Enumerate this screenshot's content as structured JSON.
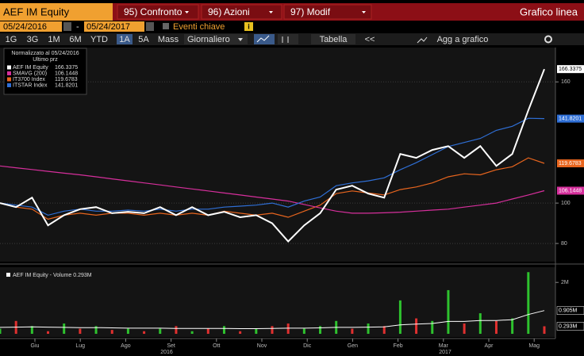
{
  "toolbar": {
    "ticker": "AEF IM Equity",
    "buttons": [
      "95) Confronto",
      "96) Azioni",
      "97) Modif"
    ],
    "view": "Grafico linea",
    "start_date": "05/24/2016",
    "separator": "-",
    "end_date": "05/24/2017",
    "events": "Eventi chiave",
    "info": "i",
    "periods": [
      "1G",
      "3G",
      "1M",
      "6M",
      "YTD",
      "1A",
      "5A",
      "Mass"
    ],
    "active_period": "1A",
    "frequency": "Giornaliero",
    "table": "Tabella",
    "back": "<<",
    "add": "Agg a grafico"
  },
  "chart_data": [
    {
      "type": "line",
      "legend_title": "Normalizzato al 05/24/2016",
      "legend_subtitle": "Ultimo prz",
      "x_labels": [
        "Giu",
        "Lug",
        "Ago",
        "Set",
        "Ott",
        "Nov",
        "Dic",
        "Gen",
        "Feb",
        "Mar",
        "Apr",
        "Mag"
      ],
      "years": [
        "2016",
        "2017"
      ],
      "ylim": [
        71,
        177
      ],
      "yticks": [
        80,
        100,
        160
      ],
      "grid": true,
      "series": [
        {
          "name": "AEF IM Equity",
          "color": "#ffffff",
          "values": [
            100,
            98,
            102.7,
            89,
            94,
            97,
            98,
            95,
            95.7,
            95,
            98,
            94,
            98,
            94,
            95.7,
            93,
            94,
            90,
            81,
            89,
            95,
            106.7,
            108.6,
            104.7,
            102.7,
            124.3,
            122.4,
            126.3,
            128.2,
            122.4,
            128.2,
            118.4,
            124.3,
            145.9,
            166.3375
          ]
        },
        {
          "name": "SMAVG (200)",
          "color": "#d62f9c",
          "values": [
            118.4,
            117.5,
            116.6,
            115.7,
            114.8,
            114,
            113,
            112,
            111,
            110,
            109,
            108,
            107,
            106,
            105,
            104,
            103,
            102,
            101,
            99.3,
            97.6,
            96,
            95,
            95,
            95.2,
            95.5,
            96,
            96.5,
            97,
            98,
            99,
            100,
            102,
            104,
            106.1448
          ]
        },
        {
          "name": "IT3700 Index",
          "color": "#e8651e",
          "values": [
            100,
            98,
            97,
            92,
            94,
            95,
            94,
            95,
            95,
            94,
            95,
            94,
            95,
            94,
            96,
            95,
            94,
            95,
            93,
            96,
            99,
            104.7,
            106,
            105,
            104,
            106.7,
            108,
            110,
            113,
            114.5,
            114,
            116.5,
            118,
            122.4,
            119.6783
          ]
        },
        {
          "name": "ITSTAR Index",
          "color": "#2f6fd6",
          "values": [
            100,
            99,
            98,
            94,
            96,
            97,
            96,
            96,
            96.5,
            96,
            97,
            96,
            97,
            97,
            98,
            98.5,
            99,
            100,
            98,
            101,
            103,
            108.6,
            110,
            111,
            112.5,
            116.5,
            120,
            124,
            128,
            130,
            132,
            136,
            138,
            142,
            141.8201
          ]
        }
      ]
    },
    {
      "type": "bar",
      "title": "AEF IM Equity - Volume 0.293M",
      "ylim": [
        0,
        2.5
      ],
      "yticks": [
        {
          "value": 2,
          "label": "2M"
        }
      ],
      "values": [
        0.2,
        0.5,
        0.3,
        0.1,
        0.4,
        0.2,
        0.3,
        0.15,
        0.2,
        0.1,
        0.2,
        0.3,
        0.1,
        0.2,
        0.3,
        0.1,
        0.2,
        0.3,
        0.4,
        0.2,
        0.3,
        0.5,
        0.2,
        0.4,
        0.3,
        1.3,
        0.6,
        0.5,
        1.7,
        0.4,
        0.8,
        0.5,
        0.6,
        2.4,
        0.293
      ],
      "colors": [
        "#2ec22e",
        "#e0302f",
        "#2ec22e",
        "#e0302f",
        "#2ec22e",
        "#e0302f",
        "#2ec22e",
        "#e0302f",
        "#2ec22e",
        "#e0302f",
        "#2ec22e",
        "#e0302f",
        "#2ec22e",
        "#e0302f",
        "#2ec22e",
        "#e0302f",
        "#2ec22e",
        "#e0302f",
        "#e0302f",
        "#2ec22e",
        "#2ec22e",
        "#2ec22e",
        "#e0302f",
        "#2ec22e",
        "#e0302f",
        "#2ec22e",
        "#e0302f",
        "#2ec22e",
        "#2ec22e",
        "#e0302f",
        "#2ec22e",
        "#e0302f",
        "#2ec22e",
        "#2ec22e",
        "#e0302f"
      ],
      "tag": "0.293M",
      "line": {
        "color": "#ffffff",
        "values": [
          0.25,
          0.26,
          0.27,
          0.26,
          0.25,
          0.24,
          0.24,
          0.23,
          0.22,
          0.22,
          0.22,
          0.21,
          0.21,
          0.21,
          0.21,
          0.2,
          0.2,
          0.21,
          0.22,
          0.22,
          0.23,
          0.25,
          0.25,
          0.26,
          0.27,
          0.35,
          0.38,
          0.4,
          0.48,
          0.48,
          0.52,
          0.52,
          0.55,
          0.75,
          0.905
        ],
        "tag": "0.905M"
      }
    }
  ]
}
